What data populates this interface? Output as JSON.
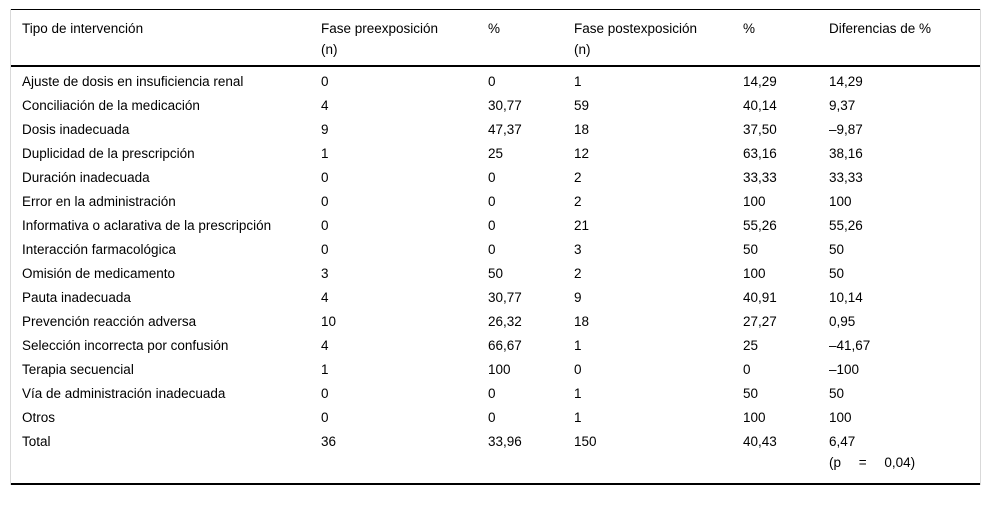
{
  "table": {
    "columns": [
      {
        "label": "Tipo de intervención"
      },
      {
        "label": "Fase preexposición",
        "sub": "(n)"
      },
      {
        "label": "%"
      },
      {
        "label": "Fase postexposición",
        "sub": "(n)"
      },
      {
        "label": "%"
      },
      {
        "label": "Diferencias de %"
      }
    ],
    "rows": [
      [
        "Ajuste de dosis en insuficiencia renal",
        "0",
        "0",
        "1",
        "14,29",
        "14,29"
      ],
      [
        "Conciliación de la medicación",
        "4",
        "30,77",
        "59",
        "40,14",
        "9,37"
      ],
      [
        "Dosis inadecuada",
        "9",
        "47,37",
        "18",
        "37,50",
        "–9,87"
      ],
      [
        "Duplicidad de la prescripción",
        "1",
        "25",
        "12",
        "63,16",
        "38,16"
      ],
      [
        "Duración inadecuada",
        "0",
        "0",
        "2",
        "33,33",
        "33,33"
      ],
      [
        "Error en la administración",
        "0",
        "0",
        "2",
        "100",
        "100"
      ],
      [
        "Informativa o aclarativa de la prescripción",
        "0",
        "0",
        "21",
        "55,26",
        "55,26"
      ],
      [
        "Interacción farmacológica",
        "0",
        "0",
        "3",
        "50",
        "50"
      ],
      [
        "Omisión de medicamento",
        "3",
        "50",
        "2",
        "100",
        "50"
      ],
      [
        "Pauta inadecuada",
        "4",
        "30,77",
        "9",
        "40,91",
        "10,14"
      ],
      [
        "Prevención reacción adversa",
        "10",
        "26,32",
        "18",
        "27,27",
        "0,95"
      ],
      [
        "Selección incorrecta por confusión",
        "4",
        "66,67",
        "1",
        "25",
        "–41,67"
      ],
      [
        "Terapia secuencial",
        "1",
        "100",
        "0",
        "0",
        "–100"
      ],
      [
        "Vía de administración inadecuada",
        "0",
        "0",
        "1",
        "50",
        "50"
      ],
      [
        "Otros",
        "0",
        "0",
        "1",
        "100",
        "100"
      ],
      [
        "Total",
        "36",
        "33,96",
        "150",
        "40,43",
        "6,47"
      ]
    ],
    "total_note": "(p = 0,04)"
  }
}
